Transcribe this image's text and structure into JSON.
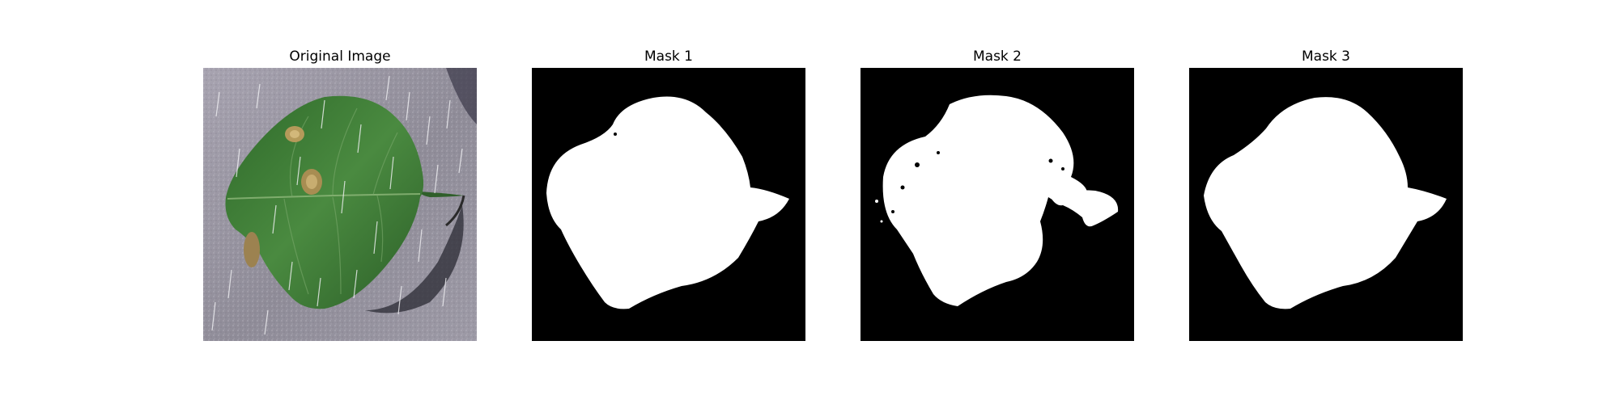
{
  "figure": {
    "panels": [
      {
        "title": "Original Image",
        "kind": "photo"
      },
      {
        "title": "Mask 1",
        "kind": "mask"
      },
      {
        "title": "Mask 2",
        "kind": "mask"
      },
      {
        "title": "Mask 3",
        "kind": "mask"
      }
    ]
  },
  "colors": {
    "mask_background": "#000000",
    "mask_foreground": "#ffffff",
    "photo_background": "#8f8c98",
    "leaf": "#3f7a35",
    "leaf_dark": "#2f5f2a",
    "disease_spot": "#b59a5a"
  }
}
